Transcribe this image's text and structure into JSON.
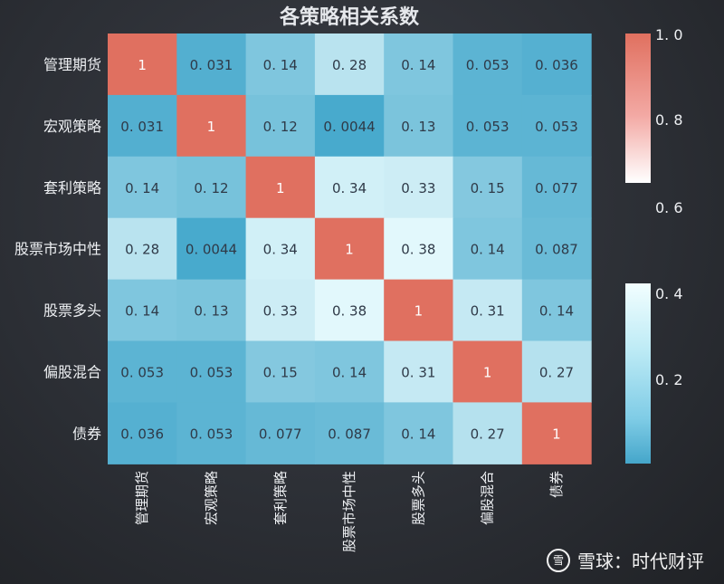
{
  "chart_data": {
    "type": "heatmap",
    "title": "各策略相关系数",
    "rows": [
      "管理期货",
      "宏观策略",
      "套利策略",
      "股票市场中性",
      "股票多头",
      "偏股混合",
      "债券"
    ],
    "columns": [
      "管理期货",
      "宏观策略",
      "套利策略",
      "股票市场中性",
      "股票多头",
      "偏股混合",
      "债券"
    ],
    "values": [
      [
        1,
        0.031,
        0.14,
        0.28,
        0.14,
        0.053,
        0.036
      ],
      [
        0.031,
        1,
        0.12,
        0.0044,
        0.13,
        0.053,
        0.053
      ],
      [
        0.14,
        0.12,
        1,
        0.34,
        0.33,
        0.15,
        0.077
      ],
      [
        0.28,
        0.0044,
        0.34,
        1,
        0.38,
        0.14,
        0.087
      ],
      [
        0.14,
        0.13,
        0.33,
        0.38,
        1,
        0.31,
        0.14
      ],
      [
        0.053,
        0.053,
        0.15,
        0.14,
        0.31,
        1,
        0.27
      ],
      [
        0.036,
        0.053,
        0.077,
        0.087,
        0.14,
        0.27,
        1
      ]
    ],
    "cell_labels": [
      [
        "1",
        "0. 031",
        "0. 14",
        "0. 28",
        "0. 14",
        "0. 053",
        "0. 036"
      ],
      [
        "0. 031",
        "1",
        "0. 12",
        "0. 0044",
        "0. 13",
        "0. 053",
        "0. 053"
      ],
      [
        "0. 14",
        "0. 12",
        "1",
        "0. 34",
        "0. 33",
        "0. 15",
        "0. 077"
      ],
      [
        "0. 28",
        "0. 0044",
        "0. 34",
        "1",
        "0. 38",
        "0. 14",
        "0. 087"
      ],
      [
        "0. 14",
        "0. 13",
        "0. 33",
        "0. 38",
        "1",
        "0. 31",
        "0. 14"
      ],
      [
        "0. 053",
        "0. 053",
        "0. 15",
        "0. 14",
        "0. 31",
        "1",
        "0. 27"
      ],
      [
        "0. 036",
        "0. 053",
        "0. 077",
        "0. 087",
        "0. 14",
        "0. 27",
        "1"
      ]
    ],
    "colorbar": {
      "ticks": [
        1.0,
        0.8,
        0.6,
        0.4,
        0.2
      ],
      "tick_labels": [
        "1. 0",
        "0. 8",
        "0. 6",
        "0. 4",
        "0. 2"
      ],
      "range": [
        0,
        1
      ],
      "colors": {
        "low": "#46a9cc",
        "mid": "#eafcfe",
        "high": "#e07060"
      }
    }
  },
  "watermark": {
    "logo_text": "雪",
    "text": "雪球：时代财评"
  }
}
